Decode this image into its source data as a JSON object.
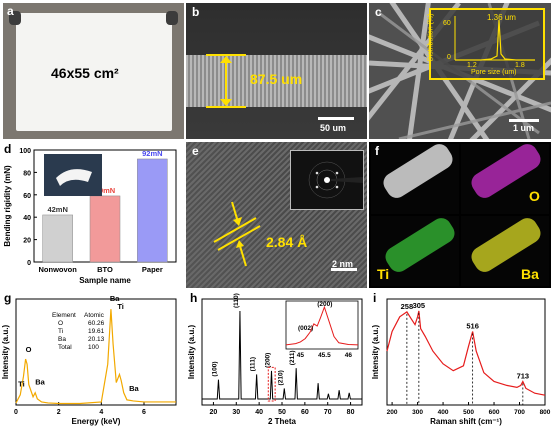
{
  "panels": {
    "a": {
      "letter": "a",
      "size_label": "46x55 cm²"
    },
    "b": {
      "letter": "b",
      "thickness": "87.5 um",
      "scale": "50 um"
    },
    "c": {
      "letter": "c",
      "scale": "1 um",
      "inset": {
        "peak_label": "1.36 um",
        "ylabel": "Distribution (%)",
        "xlabel": "Pore size (um)",
        "yticks": [
          "0",
          "60"
        ],
        "xticks": [
          "1.2",
          "1.8"
        ]
      }
    },
    "e": {
      "letter": "e",
      "d_spacing": "2.84 Å",
      "scale": "2 nm"
    },
    "f": {
      "letter": "f",
      "maps": [
        "",
        "O",
        "Ti",
        "Ba"
      ],
      "colors": [
        "#ffffff",
        "#ff00ff",
        "#22cc22",
        "#ffff00"
      ]
    }
  },
  "chart_data": [
    {
      "id": "d",
      "letter": "d",
      "type": "bar",
      "categories": [
        "Nonwovon",
        "BTO",
        "Paper"
      ],
      "values": [
        42,
        59,
        92
      ],
      "labels": [
        "42mN",
        "59mN",
        "92mN"
      ],
      "label_colors": [
        "#333333",
        "#e8463f",
        "#4a4af0"
      ],
      "bar_colors": [
        "#d0d0d0",
        "#f29a9a",
        "#9a9af6"
      ],
      "ylabel": "Bending rigidity (mN)",
      "xlabel": "Sample name",
      "ylim": [
        0,
        100
      ],
      "yticks": [
        "0",
        "20",
        "40",
        "60",
        "80",
        "100"
      ]
    },
    {
      "id": "g",
      "letter": "g",
      "type": "line",
      "xlabel": "Energy (keV)",
      "ylabel": "Intensity (a.u.)",
      "xlim": [
        0,
        7.5
      ],
      "xticks": [
        "0",
        "2",
        "4",
        "6"
      ],
      "x": [
        0,
        0.2,
        0.35,
        0.45,
        0.52,
        0.6,
        0.8,
        0.9,
        1.0,
        1.2,
        1.5,
        2.0,
        3.0,
        4.0,
        4.3,
        4.45,
        4.55,
        4.7,
        4.85,
        4.93,
        5.05,
        5.2,
        5.5,
        6.0,
        7.5
      ],
      "y": [
        0.02,
        0.1,
        0.28,
        0.45,
        0.4,
        0.2,
        0.08,
        0.12,
        0.06,
        0.03,
        0.02,
        0.015,
        0.015,
        0.03,
        0.4,
        0.94,
        0.6,
        0.22,
        0.3,
        0.24,
        0.12,
        0.05,
        0.04,
        0.03,
        0.03
      ],
      "peak_labels": [
        "O",
        "Ti",
        "Ba",
        "Ba",
        "Ti",
        "Ba"
      ],
      "table": {
        "headers": [
          "Element",
          "Atomic"
        ],
        "rows": [
          [
            "O",
            "60.26"
          ],
          [
            "Ti",
            "19.61"
          ],
          [
            "Ba",
            "20.13"
          ],
          [
            "Total",
            "100"
          ]
        ]
      },
      "color": "#f2a900"
    },
    {
      "id": "h",
      "letter": "h",
      "type": "bar",
      "xlabel": "2 Theta",
      "ylabel": "Intensity (a.u.)",
      "xlim": [
        15,
        85
      ],
      "xticks": [
        "20",
        "30",
        "40",
        "50",
        "60",
        "70",
        "80"
      ],
      "x": [
        22.2,
        31.6,
        38.9,
        45.4,
        51.0,
        56.2,
        65.8,
        70.3,
        75.0,
        79.4
      ],
      "values": [
        0.22,
        1.0,
        0.28,
        0.32,
        0.12,
        0.35,
        0.18,
        0.06,
        0.1,
        0.07
      ],
      "peak_labels": [
        "(100)",
        "(110)",
        "(111)",
        "(200)",
        "(210)",
        "(211)",
        "",
        "",
        "",
        ""
      ],
      "inset": {
        "xticks": [
          "45",
          "45.5",
          "46"
        ],
        "peak_labels": [
          "(002)",
          "(200)"
        ],
        "x": [
          44.7,
          44.9,
          45.0,
          45.1,
          45.2,
          45.28,
          45.35,
          45.42,
          45.5,
          45.6,
          45.7,
          45.8,
          46.0,
          46.2
        ],
        "y": [
          0.05,
          0.08,
          0.12,
          0.2,
          0.35,
          0.55,
          0.5,
          0.7,
          0.95,
          0.6,
          0.25,
          0.1,
          0.06,
          0.05
        ]
      },
      "color": "#000000"
    },
    {
      "id": "i",
      "letter": "i",
      "type": "line",
      "xlabel": "Raman shift (cm⁻¹)",
      "ylabel": "Intensity (a.u.)",
      "xlim": [
        180,
        800
      ],
      "xticks": [
        "200",
        "300",
        "400",
        "500",
        "600",
        "700",
        "800"
      ],
      "x": [
        180,
        200,
        230,
        258,
        275,
        290,
        300,
        305,
        312,
        330,
        360,
        400,
        440,
        480,
        500,
        516,
        530,
        560,
        600,
        650,
        690,
        705,
        713,
        725,
        760,
        800
      ],
      "y": [
        0.55,
        0.75,
        0.9,
        0.95,
        0.88,
        0.82,
        0.9,
        0.96,
        0.78,
        0.7,
        0.55,
        0.42,
        0.35,
        0.4,
        0.6,
        0.75,
        0.55,
        0.33,
        0.24,
        0.2,
        0.18,
        0.2,
        0.24,
        0.17,
        0.12,
        0.1
      ],
      "peak_labels": [
        "258",
        "305",
        "516",
        "713"
      ],
      "peak_x": [
        258,
        305,
        516,
        713
      ],
      "color": "#e61c1c"
    }
  ]
}
